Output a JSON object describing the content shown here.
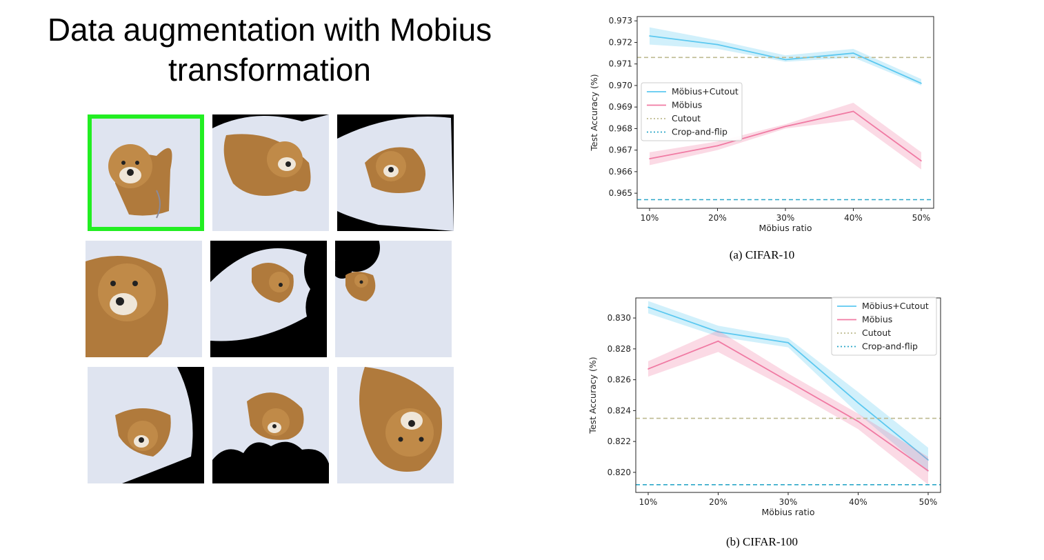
{
  "slide": {
    "title_line1": "Data augmentation with Mobius",
    "title_line2": "transformation"
  },
  "image_grid": {
    "tiles": [
      {
        "label": "original-dog-photo",
        "highlighted": true
      },
      {
        "label": "mobius-augmented-1",
        "highlighted": false
      },
      {
        "label": "mobius-augmented-2",
        "highlighted": false
      },
      {
        "label": "mobius-augmented-3",
        "highlighted": false
      },
      {
        "label": "mobius-augmented-4",
        "highlighted": false
      },
      {
        "label": "mobius-augmented-5",
        "highlighted": false
      },
      {
        "label": "mobius-augmented-6",
        "highlighted": false
      },
      {
        "label": "mobius-augmented-7",
        "highlighted": false
      },
      {
        "label": "mobius-augmented-8",
        "highlighted": false
      }
    ],
    "highlight_color": "#22ee22"
  },
  "chart_data": [
    {
      "type": "line",
      "caption": "(a) CIFAR-10",
      "xlabel": "Möbius ratio",
      "ylabel": "Test Accuracy (%)",
      "categories": [
        "10%",
        "20%",
        "30%",
        "40%",
        "50%"
      ],
      "yticks": [
        "0.965",
        "0.966",
        "0.967",
        "0.968",
        "0.969",
        "0.970",
        "0.971",
        "0.972",
        "0.973"
      ],
      "ylim": [
        0.9643,
        0.9732
      ],
      "legend_position": "center-left",
      "series": [
        {
          "name": "Möbius+Cutout",
          "color": "#5bc8f0",
          "style": "solid",
          "values": [
            0.9723,
            0.9719,
            0.9712,
            0.9715,
            0.9701
          ],
          "lower": [
            0.9719,
            0.9717,
            0.9711,
            0.9713,
            0.97
          ],
          "upper": [
            0.9727,
            0.9721,
            0.9714,
            0.9717,
            0.9703
          ]
        },
        {
          "name": "Möbius",
          "color": "#f07aa3",
          "style": "solid",
          "values": [
            0.9666,
            0.9672,
            0.9681,
            0.9688,
            0.9665
          ],
          "lower": [
            0.9663,
            0.967,
            0.968,
            0.9684,
            0.9661
          ],
          "upper": [
            0.9669,
            0.9674,
            0.9682,
            0.9692,
            0.9669
          ]
        },
        {
          "name": "Cutout",
          "color": "#bdb98f",
          "style": "dashed",
          "constant": 0.9713
        },
        {
          "name": "Crop-and-flip",
          "color": "#2aa6c8",
          "style": "dashed",
          "constant": 0.9647
        }
      ]
    },
    {
      "type": "line",
      "caption": "(b) CIFAR-100",
      "xlabel": "Möbius ratio",
      "ylabel": "Test Accuracy (%)",
      "categories": [
        "10%",
        "20%",
        "30%",
        "40%",
        "50%"
      ],
      "yticks": [
        "0.820",
        "0.822",
        "0.824",
        "0.826",
        "0.828",
        "0.830"
      ],
      "ylim": [
        0.8187,
        0.8313
      ],
      "legend_position": "top-right",
      "series": [
        {
          "name": "Möbius+Cutout",
          "color": "#5bc8f0",
          "style": "solid",
          "values": [
            0.8307,
            0.8291,
            0.8284,
            0.8245,
            0.8208
          ],
          "lower": [
            0.8303,
            0.8288,
            0.8281,
            0.8238,
            0.82
          ],
          "upper": [
            0.8311,
            0.8295,
            0.8287,
            0.8252,
            0.8216
          ]
        },
        {
          "name": "Möbius",
          "color": "#f07aa3",
          "style": "solid",
          "values": [
            0.8267,
            0.8285,
            0.8259,
            0.8233,
            0.8201
          ],
          "lower": [
            0.8262,
            0.8278,
            0.8254,
            0.8228,
            0.8192
          ],
          "upper": [
            0.8272,
            0.8292,
            0.8264,
            0.8238,
            0.821
          ]
        },
        {
          "name": "Cutout",
          "color": "#bdb98f",
          "style": "dashed",
          "constant": 0.8235
        },
        {
          "name": "Crop-and-flip",
          "color": "#2aa6c8",
          "style": "dashed",
          "constant": 0.8192
        }
      ]
    }
  ]
}
